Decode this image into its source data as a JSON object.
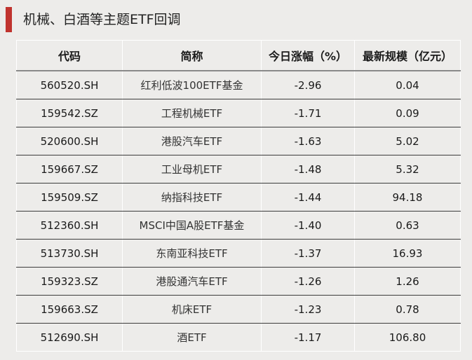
{
  "title": "机械、白酒等主题ETF回调",
  "colors": {
    "accent": "#c0332e",
    "background": "#edecea"
  },
  "table": {
    "headers": [
      "代码",
      "简称",
      "今日涨幅（%）",
      "最新规模（亿元）"
    ],
    "rows": [
      [
        "560520.SH",
        "红利低波100ETF基金",
        "-2.96",
        "0.04"
      ],
      [
        "159542.SZ",
        "工程机械ETF",
        "-1.71",
        "0.09"
      ],
      [
        "520600.SH",
        "港股汽车ETF",
        "-1.63",
        "5.02"
      ],
      [
        "159667.SZ",
        "工业母机ETF",
        "-1.48",
        "5.32"
      ],
      [
        "159509.SZ",
        "纳指科技ETF",
        "-1.44",
        "94.18"
      ],
      [
        "512360.SH",
        "MSCI中国A股ETF基金",
        "-1.40",
        "0.63"
      ],
      [
        "513730.SH",
        "东南亚科技ETF",
        "-1.37",
        "16.93"
      ],
      [
        "159323.SZ",
        "港股通汽车ETF",
        "-1.26",
        "1.26"
      ],
      [
        "159663.SZ",
        "机床ETF",
        "-1.23",
        "0.78"
      ],
      [
        "512690.SH",
        "酒ETF",
        "-1.17",
        "106.80"
      ]
    ]
  }
}
